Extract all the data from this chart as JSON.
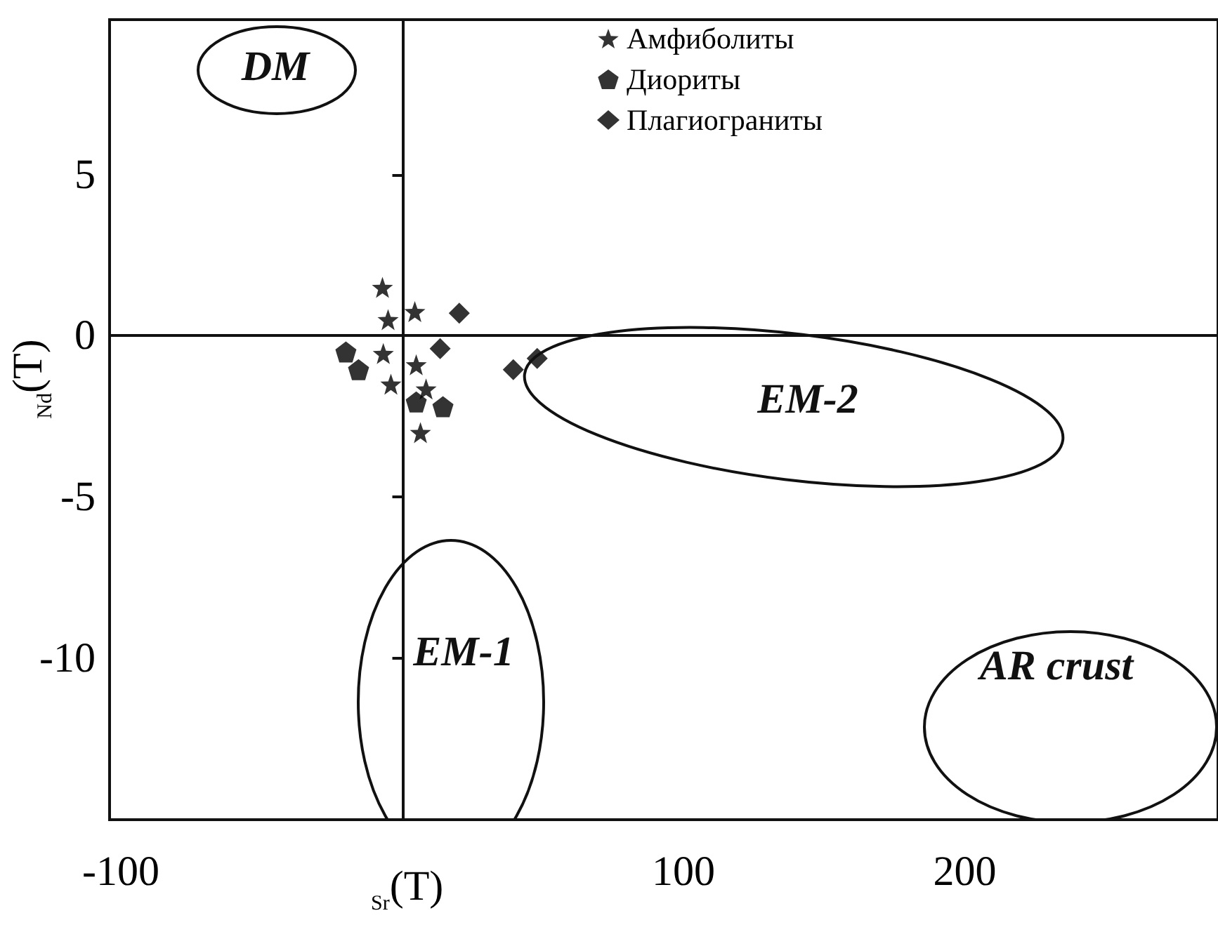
{
  "chart_data": {
    "type": "scatter",
    "xlabel": "$_{Sr}$(T)",
    "ylabel": "$_{Nd}$(T)",
    "xlim": [
      -104,
      290
    ],
    "ylim": [
      -15,
      9.8
    ],
    "xticks": [
      -100,
      100,
      200
    ],
    "yticks": [
      -10,
      -5,
      0,
      5
    ],
    "legend": "top",
    "series": [
      {
        "name": "Амфиболиты",
        "color": "#000000",
        "marker": "star",
        "x": [
          -7,
          -5,
          4.5,
          -6.7,
          5,
          -4,
          8.5,
          6.5
        ],
        "values": [
          1.5,
          0.5,
          0.75,
          -0.55,
          -0.9,
          -1.5,
          -1.65,
          -3.0
        ]
      },
      {
        "name": "Диориты",
        "color": "#000000",
        "marker": "circle",
        "x": [
          -20,
          -15.5,
          5,
          14.5
        ],
        "values": [
          -0.5,
          -1.05,
          -2.05,
          -2.2
        ]
      },
      {
        "name": "Плагиограниты",
        "color": "#000000",
        "marker": "diamond",
        "x": [
          20.3,
          13.5,
          39.5,
          48
        ],
        "values": [
          0.7,
          -0.4,
          -1.05,
          -0.7
        ]
      }
    ],
    "annotations": [
      "DM",
      "EM-2",
      "EM-1",
      "AR crust"
    ]
  }
}
